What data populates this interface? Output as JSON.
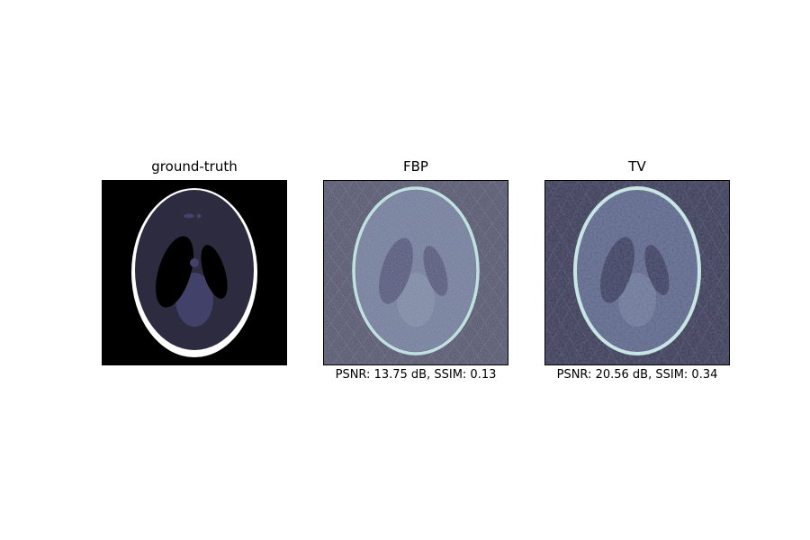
{
  "figure": {
    "panels": [
      {
        "title": "ground-truth",
        "caption": ""
      },
      {
        "title": "FBP",
        "caption": "PSNR: 13.75 dB, SSIM: 0.13"
      },
      {
        "title": "TV",
        "caption": "PSNR: 20.56 dB, SSIM: 0.34"
      }
    ]
  },
  "colors": {
    "background": "#000000",
    "outer_ring": "#ffffff",
    "head_tissue": "#2c2b40",
    "ventricle_dark": "#000000",
    "lower_region": "#42416a",
    "fbp_background": "#4a4a63",
    "fbp_tissue": "#6a7393",
    "fbp_ring": "#b9e0dc",
    "tv_background": "#3a3a55",
    "tv_tissue": "#5d6588",
    "tv_ring": "#c6e6e4"
  }
}
